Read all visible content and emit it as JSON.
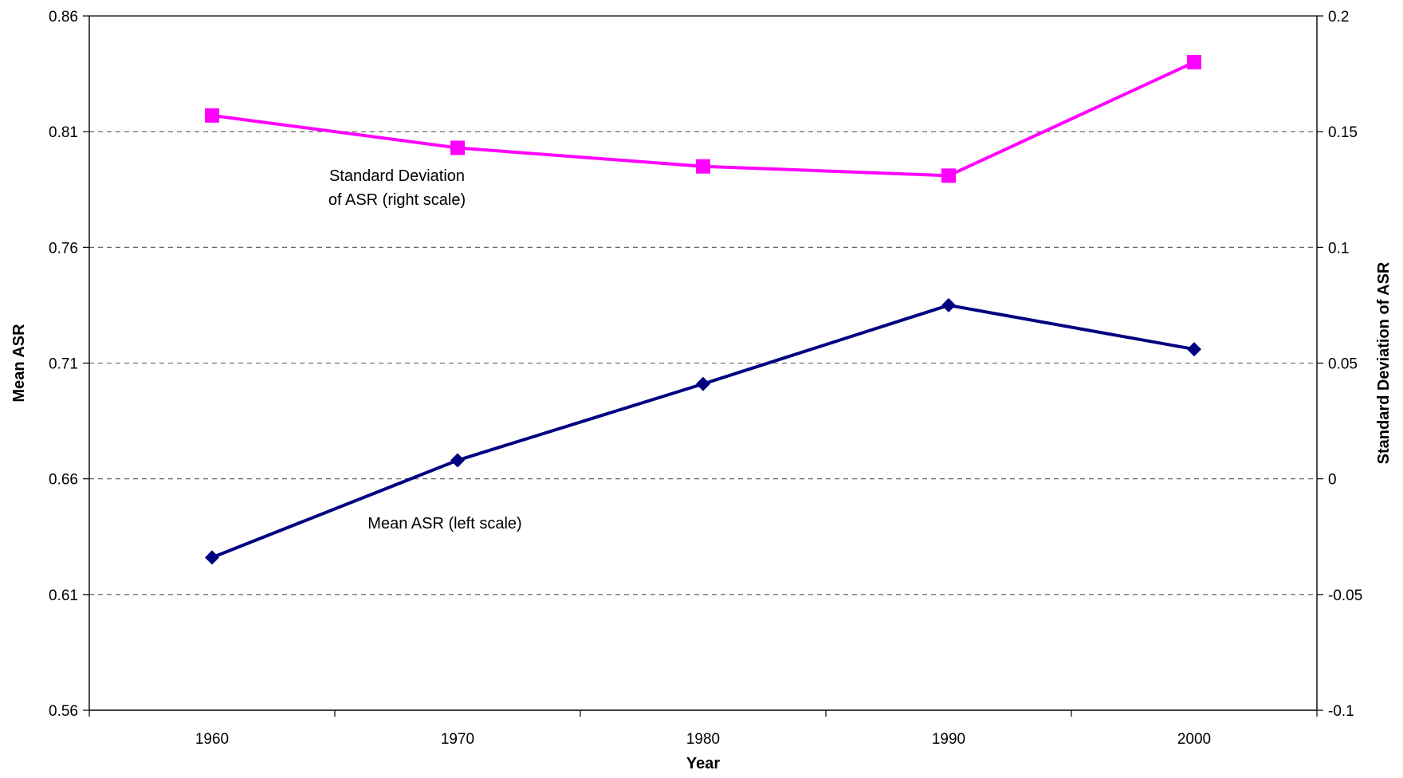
{
  "chart_data": {
    "type": "line",
    "x": [
      1960,
      1970,
      1980,
      1990,
      2000
    ],
    "xlabel": "Year",
    "ylabel": "Mean ASR",
    "y2label": "Standard Deviation of ASR",
    "ylim": [
      0.56,
      0.86
    ],
    "y2lim": [
      -0.1,
      0.2
    ],
    "yticks": [
      "0.56",
      "0.61",
      "0.66",
      "0.71",
      "0.76",
      "0.81",
      "0.86"
    ],
    "y2ticks": [
      "-0.1",
      "-0.05",
      "0",
      "0.05",
      "0.1",
      "0.15",
      "0.2"
    ],
    "xticks": [
      "1960",
      "1970",
      "1980",
      "1990",
      "2000"
    ],
    "grid": "horizontal dashed",
    "series": [
      {
        "axis": "left",
        "marker": "diamond",
        "color": "#000080",
        "values": [
          0.626,
          0.668,
          0.701,
          0.735,
          0.716
        ]
      },
      {
        "axis": "right",
        "marker": "square",
        "color": "#ff00ff",
        "values": [
          0.157,
          0.143,
          0.135,
          0.131,
          0.18
        ]
      }
    ],
    "annotations": [
      {
        "lines": [
          "Standard Deviation",
          "of ASR (right scale)"
        ]
      },
      {
        "lines": [
          "Mean ASR (left scale)"
        ]
      }
    ]
  }
}
